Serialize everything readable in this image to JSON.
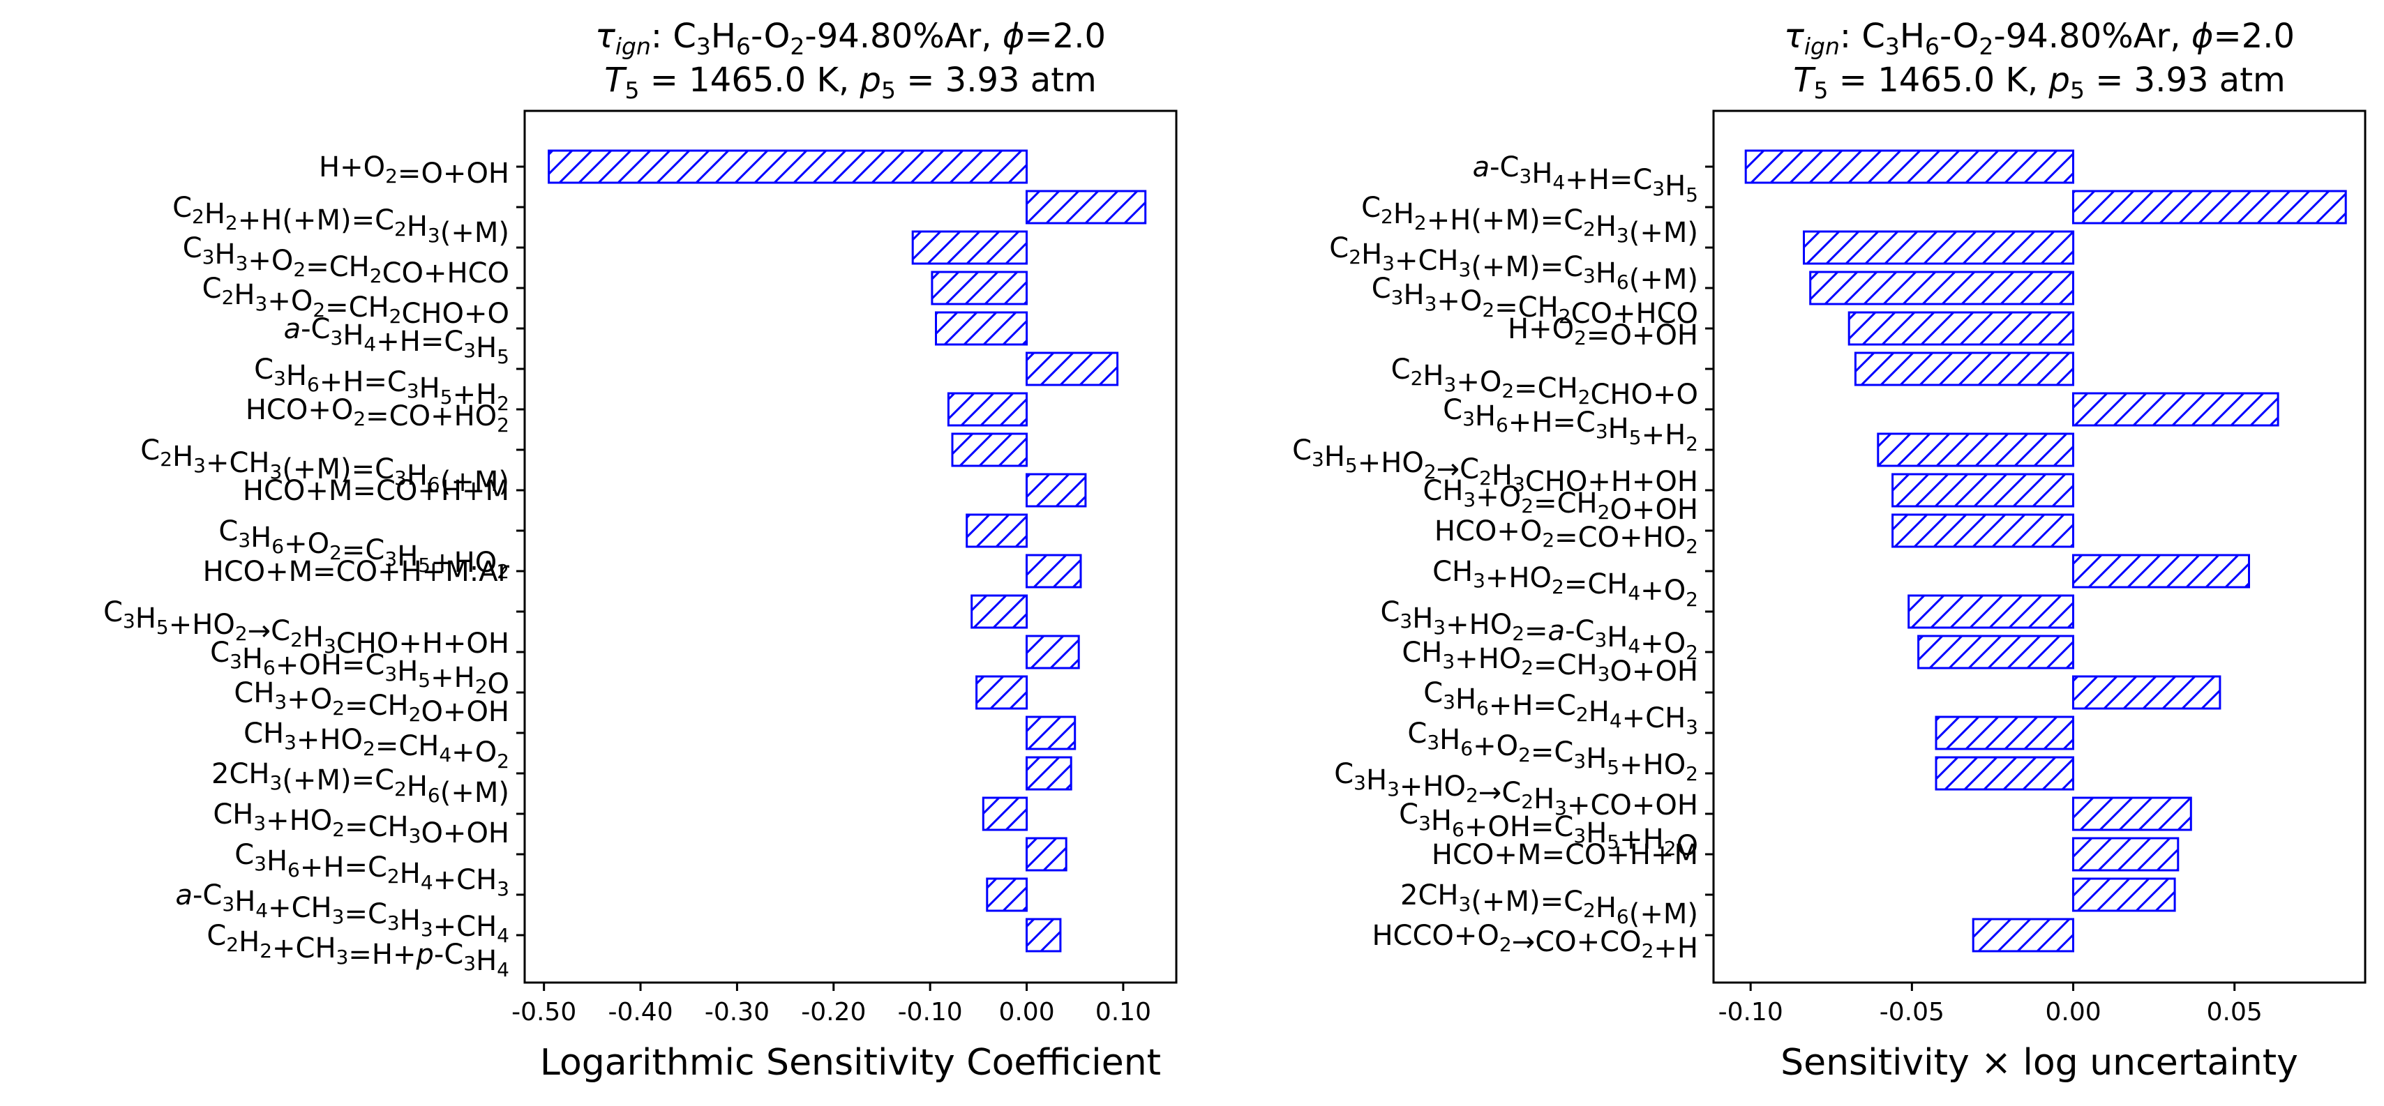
{
  "chart_data": [
    {
      "type": "bar",
      "orientation": "horizontal",
      "title": {
        "line1": "τign: C3H6-O2-94.80%Ar, ϕ=2.0",
        "line2": "T5 = 1465.0 K, p5 = 3.93 atm"
      },
      "xlabel": "Logarithmic Sensitivity Coefficient",
      "xlim": [
        -0.52,
        0.155
      ],
      "xticks": [
        -0.5,
        -0.4,
        -0.3,
        -0.2,
        -0.1,
        0.0,
        0.1
      ],
      "xtick_labels": [
        "-0.50",
        "-0.40",
        "-0.30",
        "-0.20",
        "-0.10",
        "0.00",
        "0.10"
      ],
      "bar_style": {
        "edge_color": "#0000ff",
        "hatch": "///",
        "fill": "none"
      },
      "categories": [
        "H+O₂=O+OH",
        "C₂H₂+H(+M)=C₂H₃(+M)",
        "C₃H₃+O₂=CH₂CO+HCO",
        "C₂H₃+O₂=CH₂CHO+O",
        "a-C₃H₄+H=C₃H₅",
        "C₃H₆+H=C₃H₅+H₂",
        "HCO+O₂=CO+HO₂",
        "C₂H₃+CH₃(+M)=C₃H₆(+M)",
        "HCO+M=CO+H+M",
        "C₃H₆+O₂=C₃H₅+HO₂",
        "HCO+M=CO+H+M:Ar",
        "C₃H₅+HO₂→C₂H₃CHO+H+OH",
        "C₃H₆+OH=C₃H₅+H₂O",
        "CH₃+O₂=CH₂O+OH",
        "CH₃+HO₂=CH₄+O₂",
        "2CH₃(+M)=C₂H₆(+M)",
        "CH₃+HO₂=CH₃O+OH",
        "C₃H₆+H=C₂H₄+CH₃",
        "a-C₃H₄+CH₃=C₃H₃+CH₄",
        "C₂H₂+CH₃=H+p-C₃H₄"
      ],
      "values": [
        -0.495,
        0.123,
        -0.118,
        -0.098,
        -0.094,
        0.094,
        -0.081,
        -0.077,
        0.061,
        -0.062,
        0.056,
        -0.057,
        0.054,
        -0.052,
        0.05,
        0.046,
        -0.045,
        0.041,
        -0.041,
        0.035
      ]
    },
    {
      "type": "bar",
      "orientation": "horizontal",
      "title": {
        "line1": "τign: C3H6-O2-94.80%Ar, ϕ=2.0",
        "line2": "T5 = 1465.0 K, p5 = 3.93 atm"
      },
      "xlabel": "Sensitivity × log uncertainty",
      "xlim": [
        -0.1115,
        0.0905
      ],
      "xticks": [
        -0.1,
        -0.05,
        0.0,
        0.05
      ],
      "xtick_labels": [
        "-0.10",
        "-0.05",
        "0.00",
        "0.05"
      ],
      "bar_style": {
        "edge_color": "#0000ff",
        "hatch": "///",
        "fill": "none"
      },
      "categories": [
        "a-C₃H₄+H=C₃H₅",
        "C₂H₂+H(+M)=C₂H₃(+M)",
        "C₂H₃+CH₃(+M)=C₃H₆(+M)",
        "C₃H₃+O₂=CH₂CO+HCO",
        "H+O₂=O+OH",
        "C₂H₃+O₂=CH₂CHO+O",
        "C₃H₆+H=C₃H₅+H₂",
        "C₃H₅+HO₂→C₂H₃CHO+H+OH",
        "CH₃+O₂=CH₂O+OH",
        "HCO+O₂=CO+HO₂",
        "CH₃+HO₂=CH₄+O₂",
        "C₃H₃+HO₂=a-C₃H₄+O₂",
        "CH₃+HO₂=CH₃O+OH",
        "C₃H₆+H=C₂H₄+CH₃",
        "C₃H₆+O₂=C₃H₅+HO₂",
        "C₃H₃+HO₂→C₂H₃+CO+OH",
        "C₃H₆+OH=C₃H₅+H₂O",
        "HCO+M=CO+H+M",
        "2CH₃(+M)=C₂H₆(+M)",
        "HCCO+O₂→CO+CO₂+H"
      ],
      "values": [
        -0.1015,
        0.0845,
        -0.0835,
        -0.0815,
        -0.0695,
        -0.0675,
        0.0635,
        -0.0605,
        -0.056,
        -0.056,
        0.0545,
        -0.051,
        -0.048,
        0.0455,
        -0.0425,
        -0.0425,
        0.0365,
        0.0325,
        0.0315,
        -0.031
      ]
    }
  ]
}
